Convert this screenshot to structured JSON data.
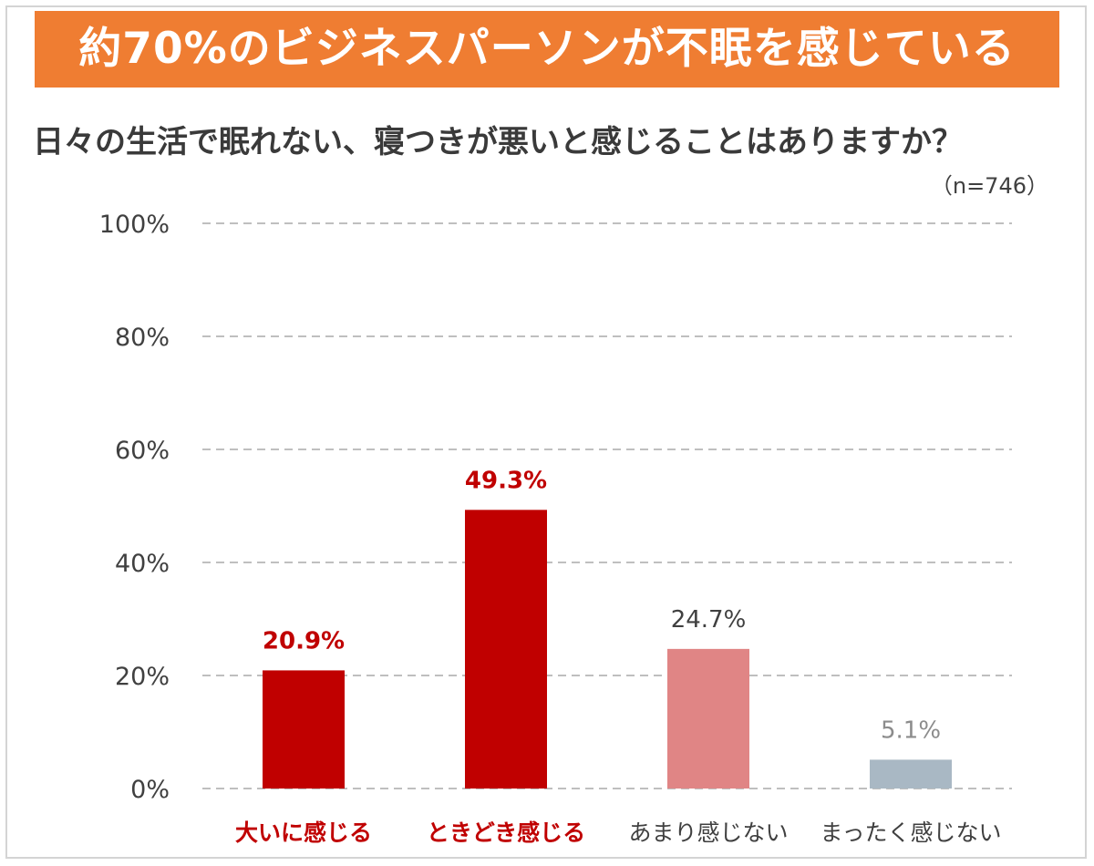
{
  "header": {
    "banner_text": "約70%のビジネスパーソンが不眠を感じている",
    "question": "日々の生活で眠れない、寝つきが悪いと感じることはありますか？",
    "sample_size": "（n=746）"
  },
  "colors": {
    "banner": "#ef7d32",
    "bar_dark_red": "#c00000",
    "bar_pink": "#e08585",
    "bar_gray": "#a9b8c4",
    "gridline": "#bfbfbf"
  },
  "chart_data": {
    "type": "bar",
    "title": "日々の生活で眠れない、寝つきが悪いと感じることはありますか？",
    "categories": [
      "大いに感じる",
      "ときどき感じる",
      "あまり感じない",
      "まったく感じない"
    ],
    "values": [
      20.9,
      49.3,
      24.7,
      5.1
    ],
    "value_labels": [
      "20.9%",
      "49.3%",
      "24.7%",
      "5.1%"
    ],
    "bar_colors": [
      "#c00000",
      "#c00000",
      "#e08585",
      "#a9b8c4"
    ],
    "value_label_colors": [
      "#c00000",
      "#c00000",
      "#404040",
      "#8c8c8c"
    ],
    "category_label_colors": [
      "#c00000",
      "#c00000",
      "#404040",
      "#404040"
    ],
    "category_label_bold": [
      true,
      true,
      false,
      false
    ],
    "ylim": [
      0,
      100
    ],
    "yticks": [
      0,
      20,
      40,
      60,
      80,
      100
    ],
    "ytick_labels": [
      "0%",
      "20%",
      "40%",
      "60%",
      "80%",
      "100%"
    ],
    "grid": true,
    "grid_style": "dashed"
  }
}
